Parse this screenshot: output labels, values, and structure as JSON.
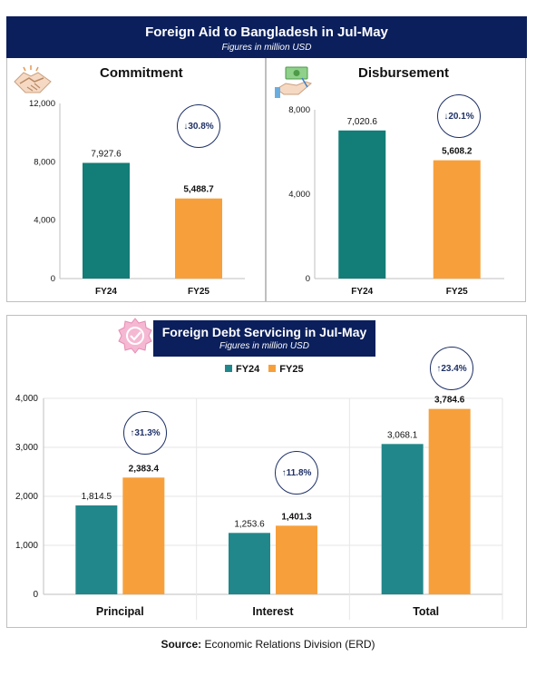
{
  "header": {
    "title": "Foreign Aid to Bangladesh in Jul-May",
    "subtitle": "Figures in million USD"
  },
  "debt_header": {
    "title": "Foreign Debt Servicing in Jul-May",
    "subtitle": "Figures in million USD"
  },
  "colors": {
    "fy24": "#22878a",
    "fy25": "#f7a03b",
    "commit_fy24": "#137d77",
    "banner": "#0b1f5c"
  },
  "badges": {
    "commitment": "↓30.8%",
    "disbursement": "↓20.1%",
    "principal": "↑31.3%",
    "interest": "↑11.8%",
    "total": "↑23.4%"
  },
  "source": {
    "label": "Source:",
    "text": "Economic Relations Division (ERD)"
  },
  "chart_data": [
    {
      "type": "bar",
      "title": "Commitment",
      "categories": [
        "FY24",
        "FY25"
      ],
      "values": [
        7927.6,
        5488.7
      ],
      "value_labels": [
        "7,927.6",
        "5,488.7"
      ],
      "yticks": [
        "0",
        "4,000",
        "8,000",
        "12,000"
      ],
      "ylim": [
        0,
        12000
      ]
    },
    {
      "type": "bar",
      "title": "Disbursement",
      "categories": [
        "FY24",
        "FY25"
      ],
      "values": [
        7020.6,
        5608.2
      ],
      "value_labels": [
        "7,020.6",
        "5,608.2"
      ],
      "yticks": [
        "0",
        "4,000",
        "8,000"
      ],
      "ylim": [
        0,
        8000
      ]
    },
    {
      "type": "bar",
      "title": "Foreign Debt Servicing in Jul-May",
      "categories": [
        "Principal",
        "Interest",
        "Total"
      ],
      "series": [
        {
          "name": "FY24",
          "values": [
            1814.5,
            1253.6,
            3068.1
          ],
          "labels": [
            "1,814.5",
            "1,253.6",
            "3,068.1"
          ]
        },
        {
          "name": "FY25",
          "values": [
            2383.4,
            1401.3,
            3784.6
          ],
          "labels": [
            "2,383.4",
            "1,401.3",
            "3,784.6"
          ]
        }
      ],
      "yticks": [
        "0",
        "1,000",
        "2,000",
        "3,000",
        "4,000"
      ],
      "ylim": [
        0,
        4000
      ],
      "legend": "top-center"
    }
  ]
}
